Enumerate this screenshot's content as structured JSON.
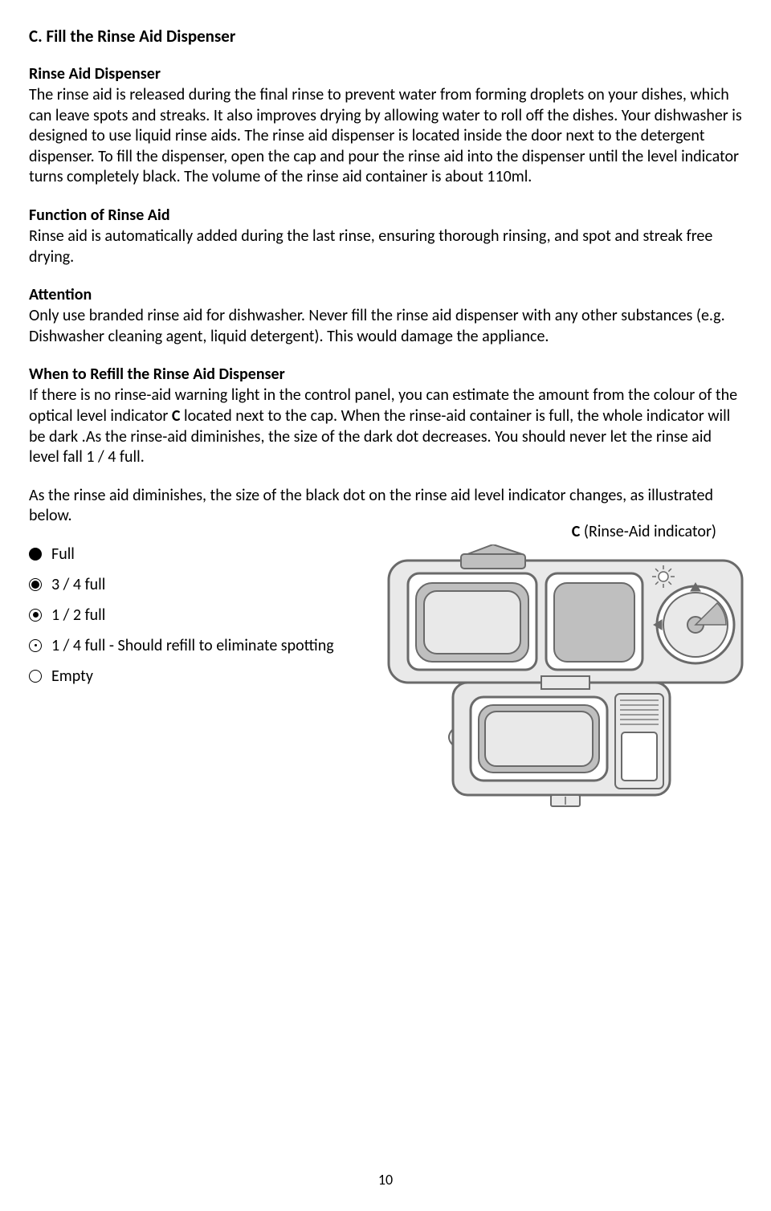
{
  "section": {
    "title": "C. Fill the Rinse Aid Dispenser",
    "sub1_title": "Rinse Aid Dispenser",
    "sub1_body": "The rinse aid is released during the final rinse to prevent water from forming droplets on your dishes, which can leave spots and streaks. It also improves drying by allowing water to roll off the dishes. Your dishwasher is designed to use liquid rinse aids. The rinse aid dispenser is located inside the door next to the detergent dispenser.\nTo fill the dispenser, open the cap and pour the rinse aid into the dispenser until the level indicator turns completely black. The volume of the rinse aid container is about 110ml.",
    "sub2_title": "Function of Rinse Aid",
    "sub2_body": "Rinse aid is automatically added during the last rinse, ensuring thorough rinsing, and spot and streak free drying.",
    "sub3_title": "Attention",
    "sub3_body": "Only use branded rinse aid for dishwasher. Never fill the rinse aid dispenser with any other substances (e.g. Dishwasher cleaning agent, liquid detergent). This would damage the appliance.",
    "sub4_title": "When to Refill the Rinse Aid Dispenser",
    "sub4_body": "If there is no rinse-aid warning light in the control panel, you can estimate the amount from the colour of the optical level indicator C located next to the cap. When the rinse-aid container is full, the whole indicator will be dark .As the rinse-aid diminishes, the size of the dark dot decreases. You should never let the rinse aid level fall 1 / 4 full.",
    "sub4_body2": "As the rinse aid diminishes, the size of the black dot on the rinse aid level indicator changes, as illustrated below.",
    "callout_bold": "C",
    "callout_rest": " (Rinse-Aid indicator)",
    "levels": [
      {
        "label": "Full",
        "inner_size": 16
      },
      {
        "label": "3 / 4 full",
        "inner_size": 10
      },
      {
        "label": "1 / 2 full",
        "inner_size": 7
      },
      {
        "label": "1 / 4 full - Should refill to eliminate spotting",
        "inner_size": 3
      },
      {
        "label": "Empty",
        "inner_size": 0
      }
    ]
  },
  "page_number": "10",
  "diagram": {
    "stroke": "#6a6a6a",
    "fill_body": "#e9e9e9",
    "fill_dark": "#bfbfbf",
    "fill_white": "#ffffff"
  }
}
